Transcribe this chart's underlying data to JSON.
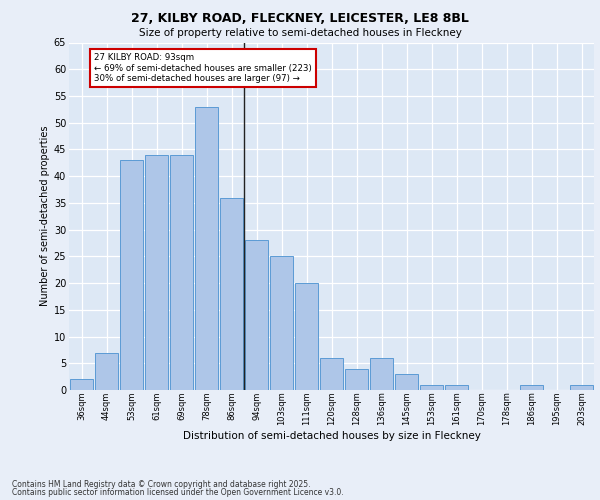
{
  "title1": "27, KILBY ROAD, FLECKNEY, LEICESTER, LE8 8BL",
  "title2": "Size of property relative to semi-detached houses in Fleckney",
  "xlabel": "Distribution of semi-detached houses by size in Fleckney",
  "ylabel": "Number of semi-detached properties",
  "categories": [
    "36sqm",
    "44sqm",
    "53sqm",
    "61sqm",
    "69sqm",
    "78sqm",
    "86sqm",
    "94sqm",
    "103sqm",
    "111sqm",
    "120sqm",
    "128sqm",
    "136sqm",
    "145sqm",
    "153sqm",
    "161sqm",
    "170sqm",
    "178sqm",
    "186sqm",
    "195sqm",
    "203sqm"
  ],
  "values": [
    2,
    7,
    43,
    44,
    44,
    53,
    36,
    28,
    25,
    20,
    6,
    4,
    6,
    3,
    1,
    1,
    0,
    0,
    1,
    0,
    1
  ],
  "bar_color": "#aec6e8",
  "bar_edge_color": "#5b9bd5",
  "background_color": "#dde8f5",
  "grid_color": "#ffffff",
  "fig_background": "#e8eef8",
  "ylim": [
    0,
    65
  ],
  "yticks": [
    0,
    5,
    10,
    15,
    20,
    25,
    30,
    35,
    40,
    45,
    50,
    55,
    60,
    65
  ],
  "vline_x": 6.5,
  "annotation_text": "27 KILBY ROAD: 93sqm\n← 69% of semi-detached houses are smaller (223)\n30% of semi-detached houses are larger (97) →",
  "annotation_box_color": "#ffffff",
  "annotation_edge_color": "#cc0000",
  "footnote1": "Contains HM Land Registry data © Crown copyright and database right 2025.",
  "footnote2": "Contains public sector information licensed under the Open Government Licence v3.0."
}
